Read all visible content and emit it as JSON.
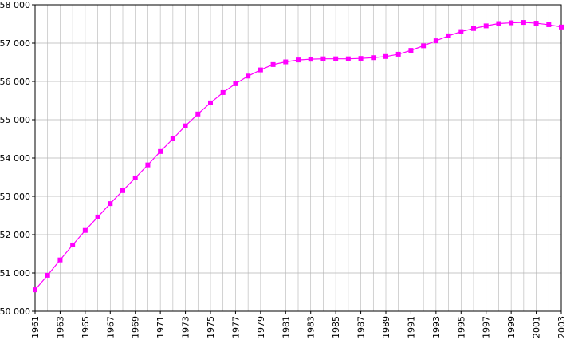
{
  "chart_data": {
    "type": "line",
    "title": "",
    "xlabel": "",
    "ylabel": "",
    "x": [
      1961,
      1962,
      1963,
      1964,
      1965,
      1966,
      1967,
      1968,
      1969,
      1970,
      1971,
      1972,
      1973,
      1974,
      1975,
      1976,
      1977,
      1978,
      1979,
      1980,
      1981,
      1982,
      1983,
      1984,
      1985,
      1986,
      1987,
      1988,
      1989,
      1990,
      1991,
      1992,
      1993,
      1994,
      1995,
      1996,
      1997,
      1998,
      1999,
      2000,
      2001,
      2002,
      2003
    ],
    "series": [
      {
        "name": "",
        "color": "#ff00ff",
        "values": [
          50560,
          50940,
          51340,
          51730,
          52110,
          52460,
          52810,
          53150,
          53480,
          53820,
          54170,
          54500,
          54840,
          55150,
          55440,
          55710,
          55940,
          56140,
          56300,
          56440,
          56510,
          56560,
          56580,
          56590,
          56590,
          56590,
          56600,
          56620,
          56650,
          56710,
          56810,
          56930,
          57060,
          57190,
          57300,
          57380,
          57450,
          57510,
          57530,
          57540,
          57520,
          57480,
          57420
        ]
      }
    ],
    "ylim": [
      50000,
      58000
    ],
    "xlim": [
      1961,
      2003
    ],
    "y_ticks": [
      50000,
      51000,
      52000,
      53000,
      54000,
      55000,
      56000,
      57000,
      58000
    ],
    "y_tick_labels": [
      "50 000",
      "51 000",
      "52 000",
      "53 000",
      "54 000",
      "55 000",
      "56 000",
      "57 000",
      "58 000"
    ],
    "x_tick_labels": [
      "1961",
      "1963",
      "1965",
      "1967",
      "1969",
      "1971",
      "1973",
      "1975",
      "1977",
      "1979",
      "1981",
      "1983",
      "1985",
      "1987",
      "1989",
      "1991",
      "1993",
      "1995",
      "1997",
      "1999",
      "2001",
      "2003"
    ],
    "grid": true,
    "legend": "none",
    "grid_color": "#b4b4b4",
    "axis_color": "#000000"
  }
}
